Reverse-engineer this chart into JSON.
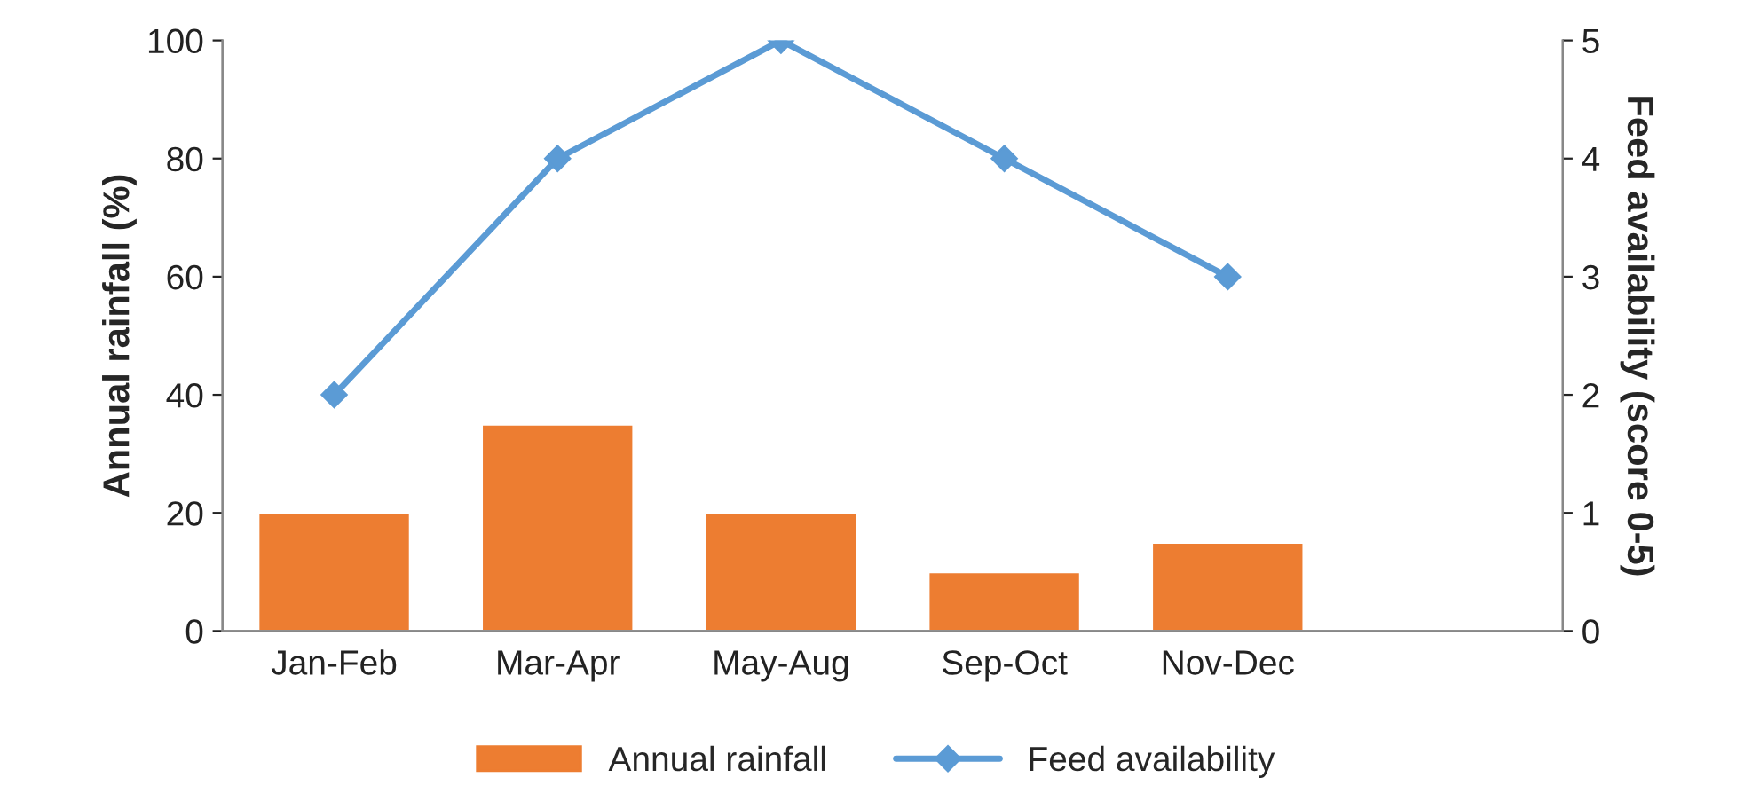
{
  "chart_data": {
    "type": "bar",
    "categories": [
      "Jan-Feb",
      "Mar-Apr",
      "May-Aug",
      "Sep-Oct",
      "Nov-Dec",
      null
    ],
    "ylabel": "Annual rainfall (%)",
    "y2label": "Feed availability (score 0-5)",
    "series": [
      {
        "name": "Annual rainfall",
        "color": "#ed7d31",
        "values": [
          20,
          35,
          20,
          10,
          15,
          null
        ]
      },
      {
        "name": "Feed availability",
        "type": "line",
        "axis": "y2",
        "color": "#5b9bd5",
        "marker": "diamond",
        "values": [
          2,
          4,
          5,
          4,
          3,
          null
        ]
      }
    ],
    "ylim": [
      0,
      100
    ],
    "yticks": [
      0,
      20,
      40,
      60,
      80,
      100
    ],
    "y2lim": [
      0,
      5
    ],
    "y2ticks": [
      0,
      1,
      2,
      3,
      4,
      5
    ],
    "grid": false,
    "legend": "bottom"
  }
}
